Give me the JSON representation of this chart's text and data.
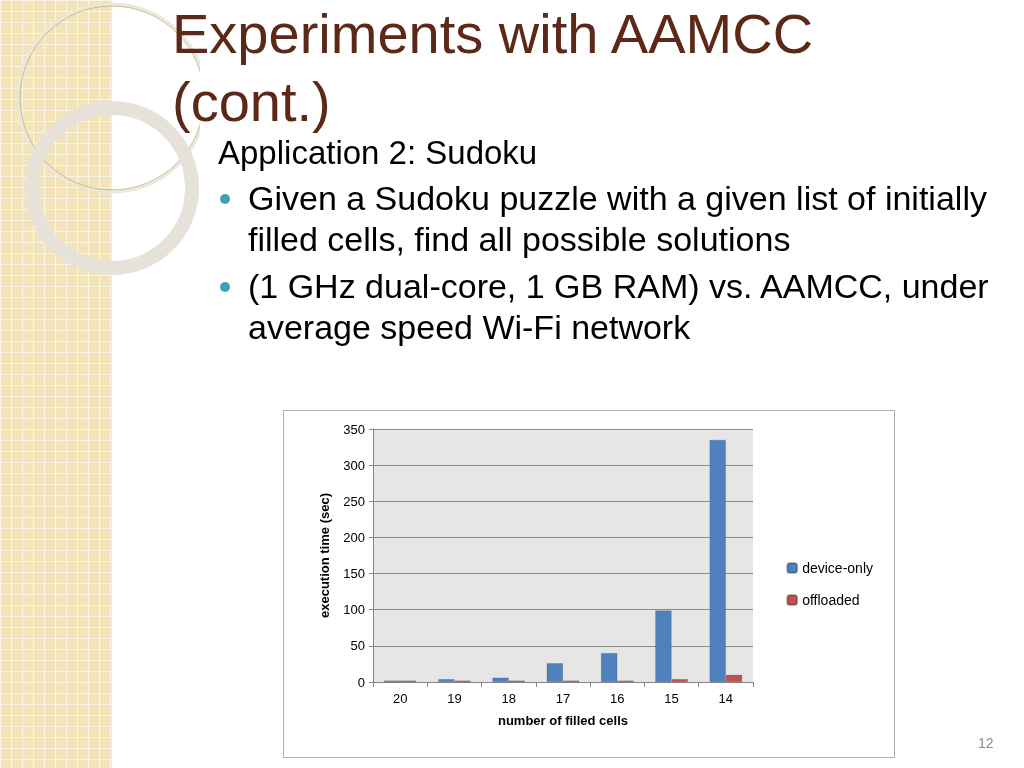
{
  "chart_data": {
    "type": "bar",
    "title": "Experiments with AAMCC (cont.)",
    "subtitle": "Application 2: Sudoku",
    "xlabel": "number of filled cells",
    "ylabel": "execution time (sec)",
    "categories": [
      "20",
      "19",
      "18",
      "17",
      "16",
      "15",
      "14"
    ],
    "series": [
      {
        "name": "device-only",
        "color": "#4f81bd",
        "values": [
          2,
          4,
          6,
          26,
          40,
          99,
          335
        ]
      },
      {
        "name": "offloaded",
        "color": "#c0504d",
        "values": [
          2,
          2,
          2,
          2,
          2,
          4,
          10
        ]
      }
    ],
    "ylim": [
      0,
      350
    ],
    "yticks": [
      0,
      50,
      100,
      150,
      200,
      250,
      300,
      350
    ],
    "grid": "y",
    "legend": "right",
    "annotations": [
      "Given a Sudoku puzzle with a given list of initially filled cells, find all possible solutions",
      "(1 GHz dual-core, 1 GB RAM) vs. AAMCC, under average speed Wi-Fi network",
      "12"
    ]
  }
}
